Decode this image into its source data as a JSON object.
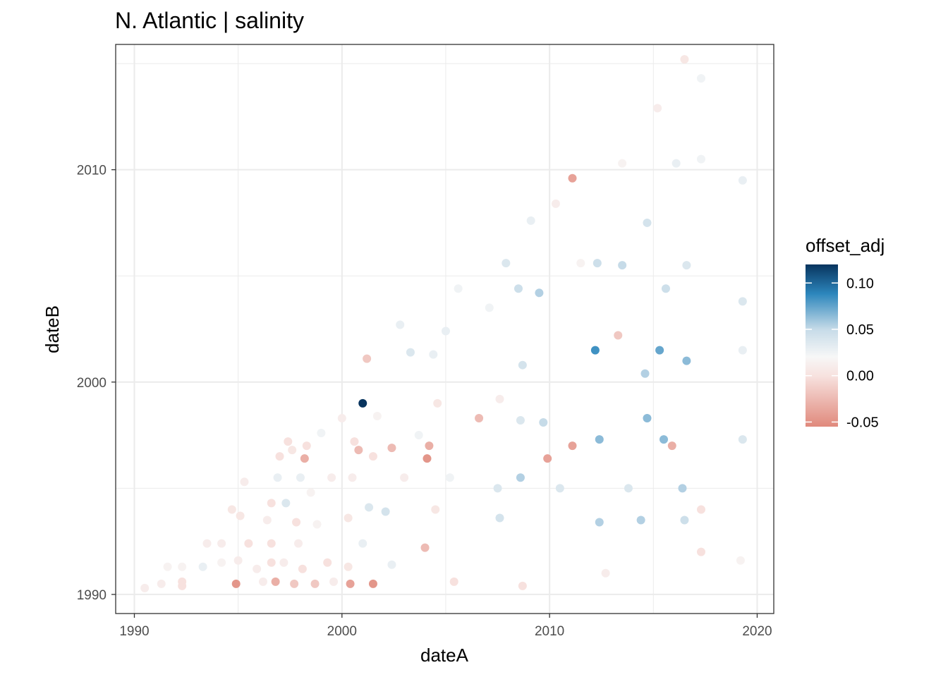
{
  "chart_data": {
    "type": "scatter",
    "title": "N. Atlantic | salinity",
    "xlabel": "dateA",
    "ylabel": "dateB",
    "xlim": [
      1989.1,
      2020.8
    ],
    "ylim": [
      1989.1,
      2015.9
    ],
    "x_ticks": [
      1990,
      2000,
      2010,
      2020
    ],
    "x_tick_labels": [
      "1990",
      "2000",
      "2010",
      "2020"
    ],
    "y_ticks": [
      1990,
      2000,
      2010
    ],
    "y_tick_labels": [
      "1990",
      "2000",
      "2010"
    ],
    "grid": true,
    "legend": {
      "title": "offset_adj",
      "position": "right",
      "range": [
        -0.055,
        0.12
      ],
      "ticks": [
        0.1,
        0.05,
        0.0,
        -0.05
      ],
      "tick_labels": [
        "0.10",
        "0.05",
        "0.00",
        "-0.05"
      ],
      "colors": {
        "low": "#e0897c",
        "mid_low": "#f7e1de",
        "mid": "#f7f7f7",
        "mid_high": "#c6dbe8",
        "high_mid": "#2c86bc",
        "high": "#08345e"
      }
    },
    "points": [
      [
        1990.5,
        1990.3,
        -0.01
      ],
      [
        1991.3,
        1990.5,
        -0.01
      ],
      [
        1991.6,
        1991.3,
        -0.005
      ],
      [
        1992.3,
        1990.4,
        -0.02
      ],
      [
        1992.3,
        1990.6,
        -0.02
      ],
      [
        1992.3,
        1991.3,
        -0.005
      ],
      [
        1993.3,
        1991.3,
        0.01
      ],
      [
        1993.5,
        1992.4,
        -0.01
      ],
      [
        1994.2,
        1991.5,
        -0.005
      ],
      [
        1994.2,
        1992.4,
        -0.01
      ],
      [
        1994.7,
        1994.0,
        -0.015
      ],
      [
        1994.9,
        1990.5,
        -0.05
      ],
      [
        1995.0,
        1991.6,
        -0.01
      ],
      [
        1995.1,
        1993.7,
        -0.015
      ],
      [
        1995.3,
        1995.3,
        -0.01
      ],
      [
        1995.5,
        1992.4,
        -0.02
      ],
      [
        1995.9,
        1991.2,
        -0.01
      ],
      [
        1996.2,
        1990.6,
        -0.01
      ],
      [
        1996.4,
        1993.5,
        -0.01
      ],
      [
        1996.6,
        1994.3,
        -0.02
      ],
      [
        1996.6,
        1991.5,
        -0.02
      ],
      [
        1996.6,
        1992.4,
        -0.02
      ],
      [
        1996.8,
        1990.6,
        -0.04
      ],
      [
        1996.9,
        1995.5,
        0.01
      ],
      [
        1997.0,
        1996.5,
        -0.02
      ],
      [
        1997.2,
        1991.5,
        -0.01
      ],
      [
        1997.3,
        1994.3,
        0.02
      ],
      [
        1997.4,
        1997.2,
        -0.02
      ],
      [
        1997.6,
        1996.8,
        -0.015
      ],
      [
        1997.7,
        1990.5,
        -0.03
      ],
      [
        1997.8,
        1993.4,
        -0.02
      ],
      [
        1997.9,
        1992.4,
        -0.01
      ],
      [
        1998.0,
        1995.5,
        0.01
      ],
      [
        1998.1,
        1991.2,
        -0.02
      ],
      [
        1998.2,
        1996.4,
        -0.04
      ],
      [
        1998.3,
        1997.0,
        -0.02
      ],
      [
        1998.5,
        1994.8,
        -0.005
      ],
      [
        1998.7,
        1990.5,
        -0.03
      ],
      [
        1998.8,
        1993.3,
        -0.005
      ],
      [
        1999.0,
        1997.6,
        0.005
      ],
      [
        1999.3,
        1991.5,
        -0.02
      ],
      [
        1999.5,
        1995.5,
        -0.01
      ],
      [
        1999.6,
        1990.6,
        -0.01
      ],
      [
        2000.0,
        1998.3,
        -0.01
      ],
      [
        2000.3,
        1993.6,
        -0.015
      ],
      [
        2000.3,
        1991.3,
        -0.015
      ],
      [
        2000.4,
        1990.5,
        -0.045
      ],
      [
        2000.5,
        1995.5,
        -0.01
      ],
      [
        2000.6,
        1997.2,
        -0.02
      ],
      [
        2000.8,
        1996.8,
        -0.035
      ],
      [
        2001.0,
        1999.0,
        0.12
      ],
      [
        2001.0,
        1992.4,
        0.01
      ],
      [
        2001.2,
        2001.1,
        -0.03
      ],
      [
        2001.3,
        1994.1,
        0.02
      ],
      [
        2001.5,
        1996.5,
        -0.02
      ],
      [
        2001.5,
        1990.5,
        -0.05
      ],
      [
        2001.7,
        1998.4,
        -0.005
      ],
      [
        2002.1,
        1993.9,
        0.025
      ],
      [
        2002.4,
        1996.9,
        -0.035
      ],
      [
        2002.4,
        1991.4,
        0.01
      ],
      [
        2002.8,
        2002.7,
        0.01
      ],
      [
        2003.0,
        1995.5,
        -0.01
      ],
      [
        2003.3,
        2001.4,
        0.02
      ],
      [
        2003.7,
        1997.5,
        0.005
      ],
      [
        2004.0,
        1992.2,
        -0.035
      ],
      [
        2004.1,
        1996.4,
        -0.05
      ],
      [
        2004.2,
        1997.0,
        -0.04
      ],
      [
        2004.4,
        2001.3,
        0.01
      ],
      [
        2004.5,
        1994.0,
        -0.015
      ],
      [
        2004.6,
        1999.0,
        -0.015
      ],
      [
        2005.0,
        2002.4,
        0.01
      ],
      [
        2005.2,
        1995.5,
        0.005
      ],
      [
        2005.4,
        1990.6,
        -0.02
      ],
      [
        2005.6,
        2004.4,
        0.005
      ],
      [
        2006.6,
        1998.3,
        -0.035
      ],
      [
        2007.1,
        2003.5,
        0.005
      ],
      [
        2007.5,
        1995.0,
        0.02
      ],
      [
        2007.6,
        1999.2,
        -0.01
      ],
      [
        2007.6,
        1993.6,
        0.025
      ],
      [
        2007.9,
        2005.6,
        0.02
      ],
      [
        2008.5,
        2004.4,
        0.03
      ],
      [
        2008.6,
        1995.5,
        0.04
      ],
      [
        2008.6,
        1998.2,
        0.02
      ],
      [
        2008.7,
        2000.8,
        0.025
      ],
      [
        2008.7,
        1990.4,
        -0.02
      ],
      [
        2009.1,
        2007.6,
        0.01
      ],
      [
        2009.5,
        2004.2,
        0.04
      ],
      [
        2009.7,
        1998.1,
        0.035
      ],
      [
        2009.9,
        1996.4,
        -0.045
      ],
      [
        2010.3,
        2008.4,
        -0.01
      ],
      [
        2010.5,
        1995.0,
        0.02
      ],
      [
        2011.1,
        1997.0,
        -0.045
      ],
      [
        2011.1,
        2009.6,
        -0.045
      ],
      [
        2011.5,
        2005.6,
        -0.005
      ],
      [
        2012.2,
        2001.5,
        0.07
      ],
      [
        2012.3,
        2005.6,
        0.03
      ],
      [
        2012.4,
        1997.3,
        0.05
      ],
      [
        2012.4,
        1993.4,
        0.04
      ],
      [
        2012.7,
        1991.0,
        -0.01
      ],
      [
        2013.3,
        2002.2,
        -0.03
      ],
      [
        2013.5,
        2010.3,
        -0.005
      ],
      [
        2013.5,
        2005.5,
        0.035
      ],
      [
        2013.8,
        1995.0,
        0.02
      ],
      [
        2014.4,
        1993.5,
        0.04
      ],
      [
        2014.6,
        2000.4,
        0.04
      ],
      [
        2014.7,
        2007.5,
        0.025
      ],
      [
        2014.7,
        1998.3,
        0.05
      ],
      [
        2015.2,
        2012.9,
        -0.01
      ],
      [
        2015.3,
        2001.5,
        0.06
      ],
      [
        2015.5,
        1997.3,
        0.05
      ],
      [
        2015.6,
        2004.4,
        0.03
      ],
      [
        2015.9,
        1997.0,
        -0.04
      ],
      [
        2016.1,
        2010.3,
        0.01
      ],
      [
        2016.4,
        1995.0,
        0.04
      ],
      [
        2016.5,
        1993.5,
        0.03
      ],
      [
        2016.5,
        2015.2,
        -0.015
      ],
      [
        2016.6,
        2001.0,
        0.05
      ],
      [
        2016.6,
        2005.5,
        0.02
      ],
      [
        2017.3,
        1992.0,
        -0.02
      ],
      [
        2017.3,
        1994.0,
        -0.02
      ],
      [
        2017.3,
        2010.5,
        0.005
      ],
      [
        2017.3,
        2014.3,
        0.005
      ],
      [
        2019.2,
        1991.6,
        -0.005
      ],
      [
        2019.3,
        1997.3,
        0.02
      ],
      [
        2019.3,
        2001.5,
        0.01
      ],
      [
        2019.3,
        2003.8,
        0.02
      ],
      [
        2019.3,
        2009.5,
        0.01
      ]
    ]
  }
}
